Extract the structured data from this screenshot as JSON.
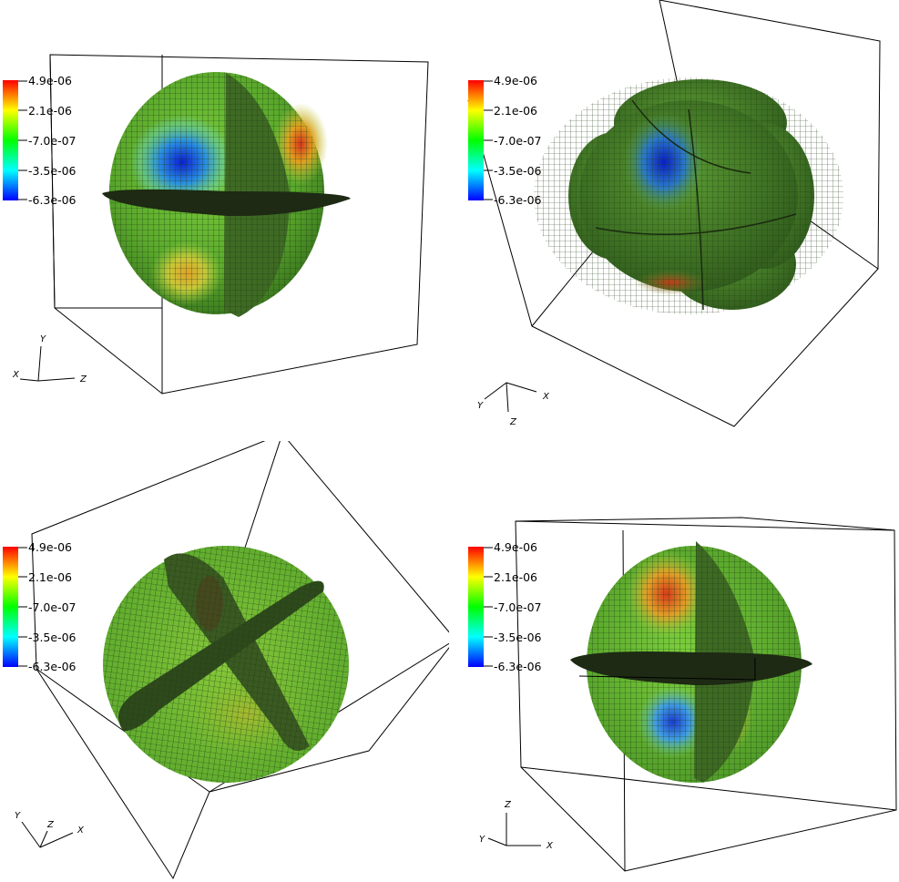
{
  "colorbar": {
    "ticks": [
      "4.9e-06",
      "2.1e-06",
      "-7.0e-07",
      "-3.5e-06",
      "-6.3e-06"
    ],
    "colors": [
      "#ff0000",
      "#ffff00",
      "#00ff00",
      "#00ffff",
      "#0000ff"
    ]
  },
  "panels": [
    {
      "axes": {
        "a": "Y",
        "b": "X",
        "c": "Z"
      }
    },
    {
      "axes": {
        "a": "Y",
        "b": "X",
        "c": "Z"
      }
    },
    {
      "axes": {
        "a": "Y",
        "b": "Z",
        "c": "X"
      }
    },
    {
      "axes": {
        "a": "Z",
        "b": "Y",
        "c": "X"
      }
    }
  ],
  "colors": {
    "mesh_green": "#5fae2f",
    "dark_green": "#2f5a1e",
    "blue_spot": "#1a2ad8",
    "red_spot": "#d8401a"
  }
}
